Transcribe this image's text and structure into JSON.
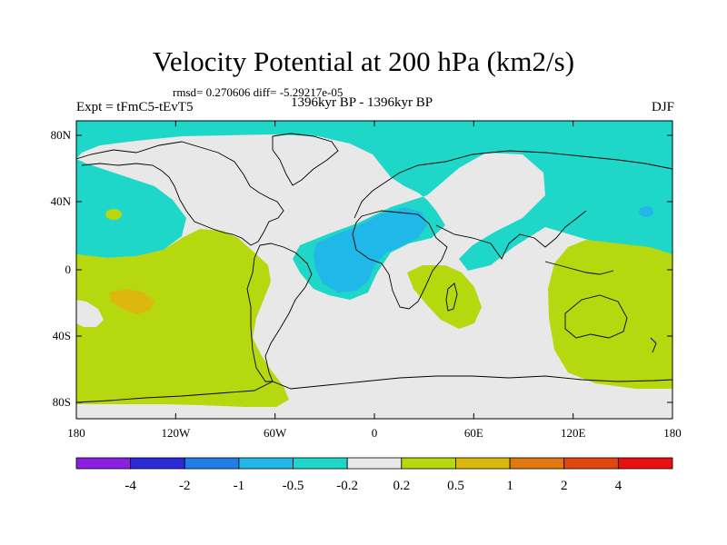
{
  "title": "Velocity Potential at 200 hPa (km2/s)",
  "stats": "rmsd= 0.270606 diff= -5.29217e-05",
  "expt": "Expt = tFmC5-tEvT5",
  "period": "1396kyr BP - 1396kyr BP",
  "season": "DJF",
  "y_ticks": [
    "80N",
    "40N",
    "0",
    "40S",
    "80S"
  ],
  "x_ticks": [
    "180",
    "120W",
    "60W",
    "0",
    "60E",
    "120E",
    "180"
  ],
  "colorbar": {
    "labels": [
      "-4",
      "-2",
      "-1",
      "-0.5",
      "-0.2",
      "0.2",
      "0.5",
      "1",
      "2",
      "4"
    ],
    "colors": [
      "#8a1fe0",
      "#2a2ad8",
      "#1f7fe6",
      "#1fb8e8",
      "#1fd7c8",
      "#e8e8e8",
      "#b6d80f",
      "#dcb80e",
      "#e0780f",
      "#e04810",
      "#e81010"
    ]
  },
  "fills": {
    "neg_light": "#1fd7c8",
    "neg_mid": "#1fb8e8",
    "neutral": "#e8e8e8",
    "pos_light": "#b6d80f",
    "pos_mid": "#dcb80e"
  }
}
